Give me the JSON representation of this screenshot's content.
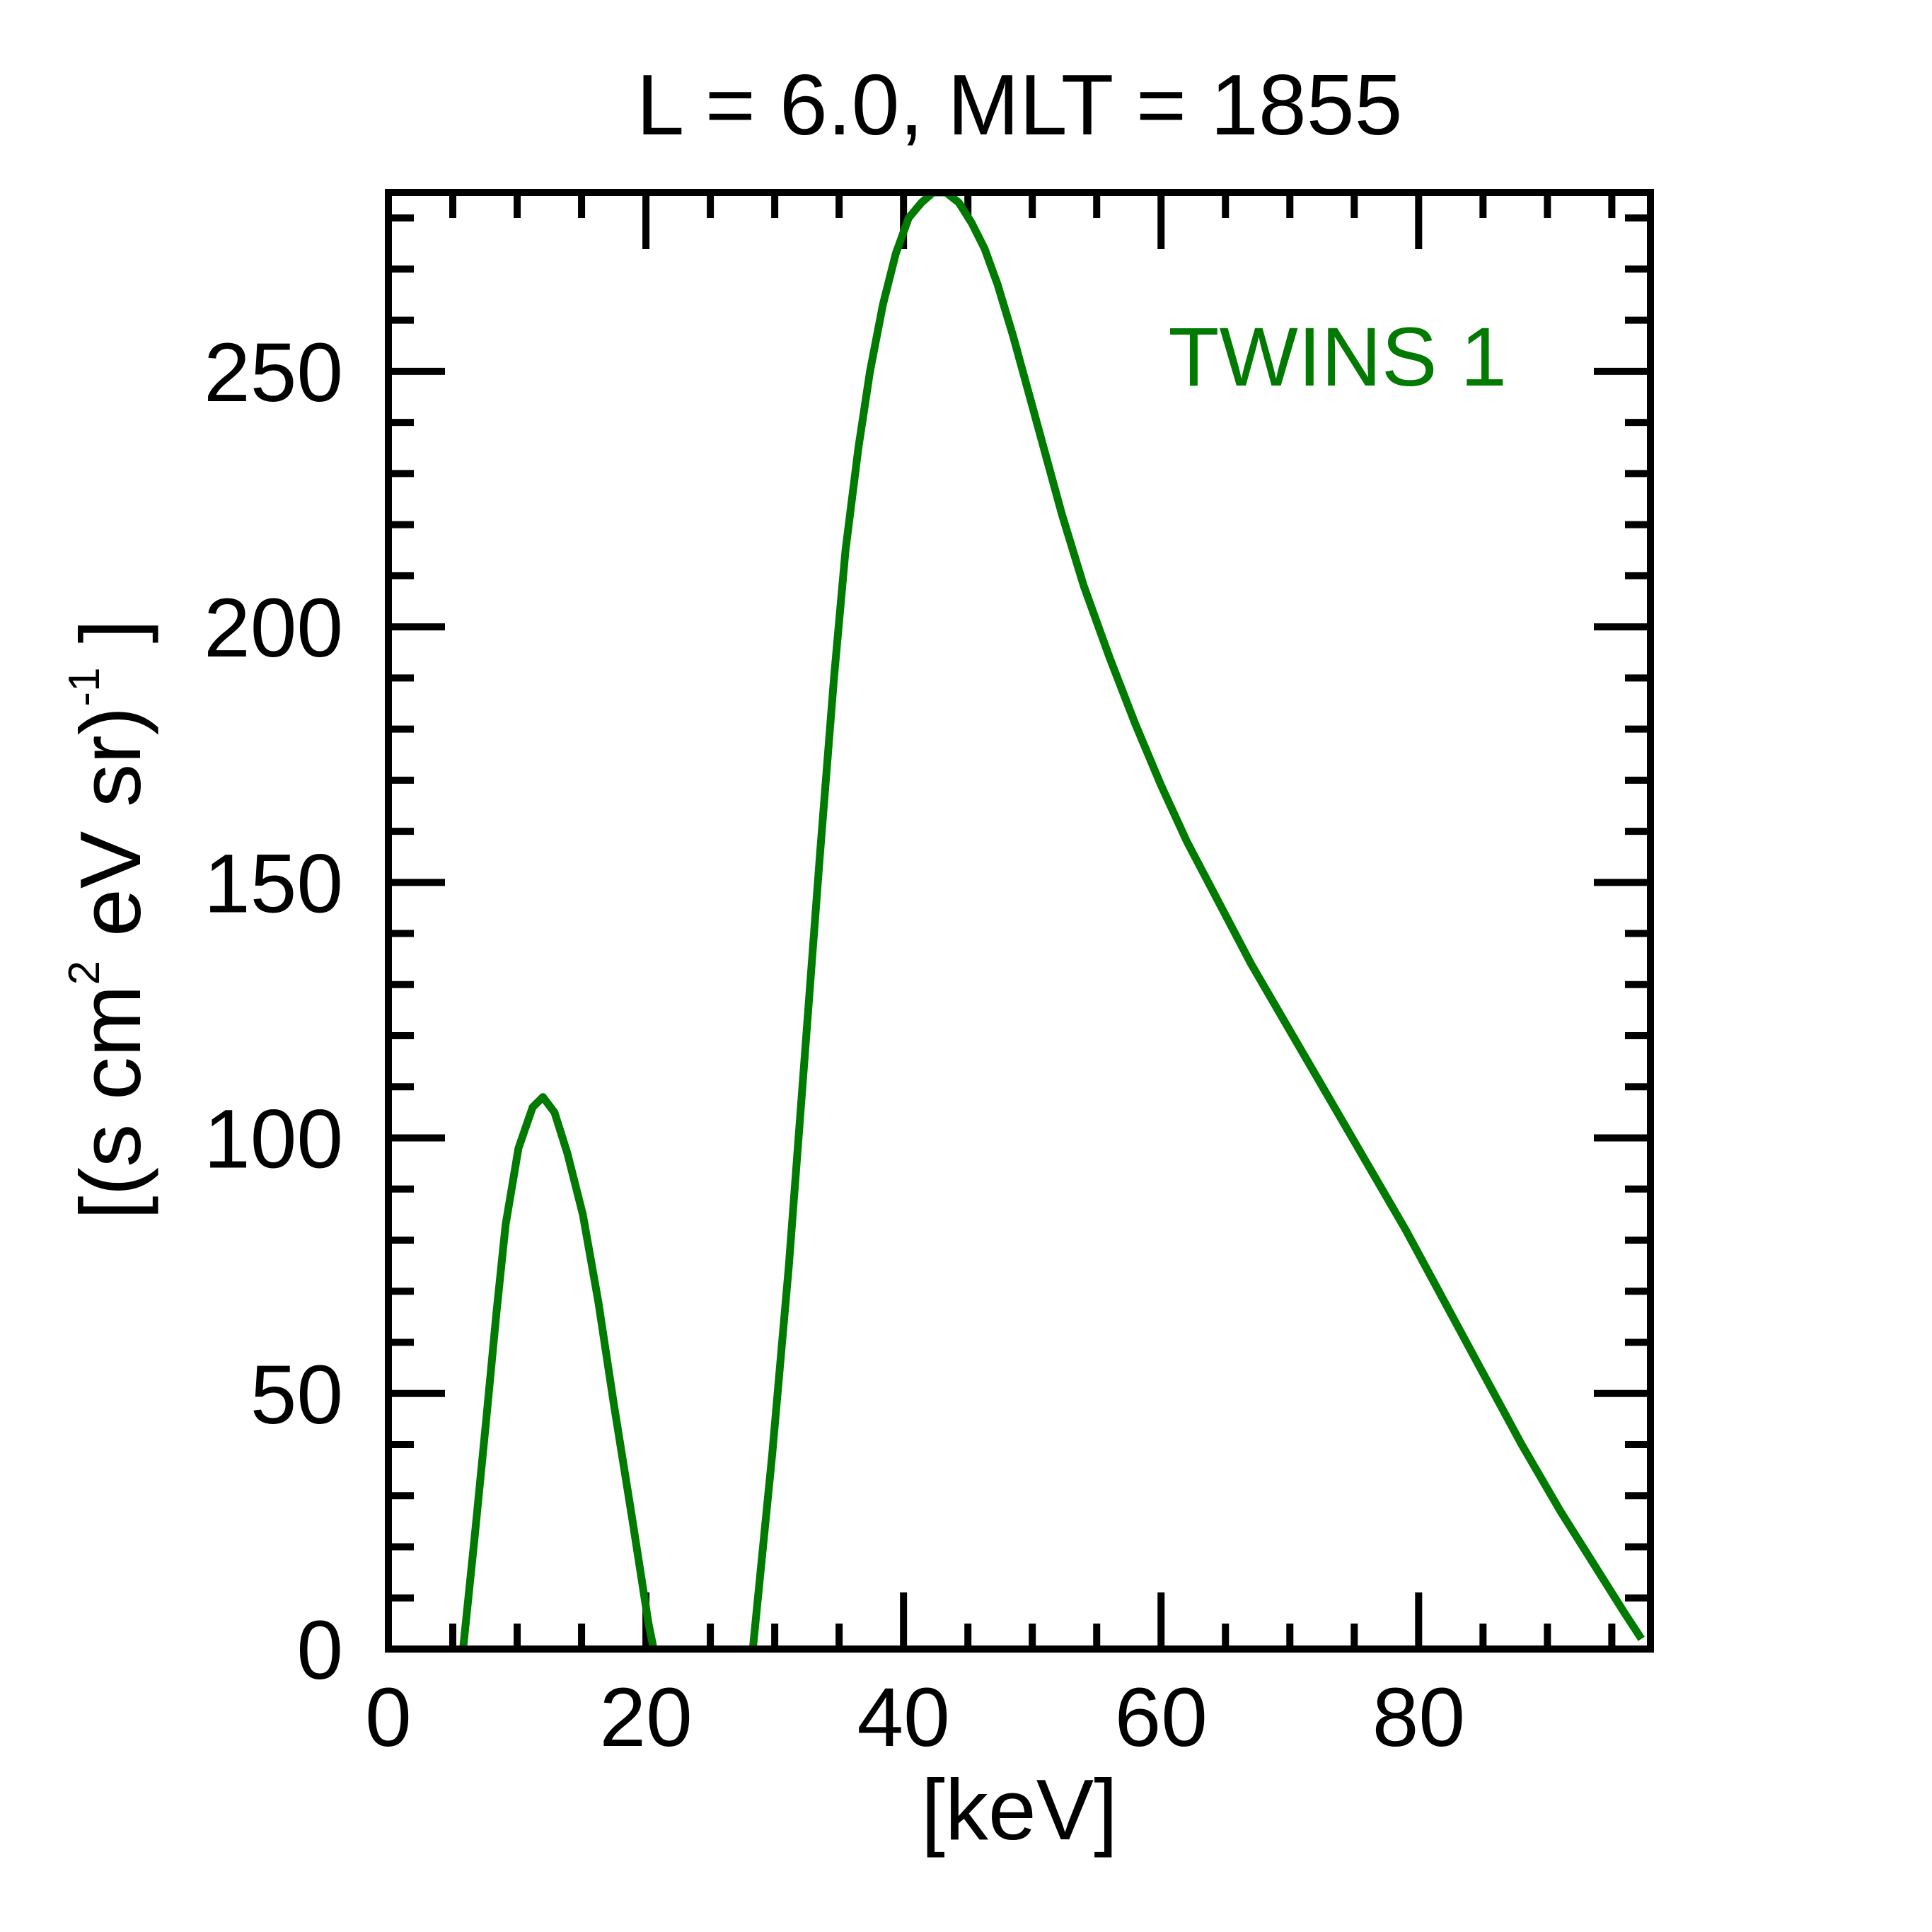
{
  "chart_data": {
    "type": "line",
    "title": "L =  6.0, MLT = 1855",
    "xlabel": "[keV]",
    "ylabel_parts": {
      "open": "[(s cm",
      "sup2": "2",
      "mid": " eV sr)",
      "supm1": "-1",
      "close": " ]"
    },
    "xlim": [
      0,
      98
    ],
    "ylim": [
      0,
      285
    ],
    "x_ticks": [
      0,
      20,
      40,
      60,
      80
    ],
    "x_tick_labels": [
      "0",
      "20",
      "40",
      "60",
      "80"
    ],
    "y_ticks": [
      0,
      50,
      100,
      150,
      200,
      250
    ],
    "y_tick_labels": [
      "0",
      "50",
      "100",
      "150",
      "200",
      "250"
    ],
    "x_minor_step": 5,
    "y_minor_step": 10,
    "grid": false,
    "legend_position": "top-right",
    "series": [
      {
        "name": "TWINS 1",
        "color": "#007a00",
        "segments": [
          [
            [
              5.8,
              0
            ],
            [
              6.7,
              22
            ],
            [
              7.6,
              45
            ],
            [
              8.4,
              66
            ],
            [
              9.1,
              83
            ],
            [
              10.1,
              98
            ],
            [
              11.2,
              106
            ],
            [
              12.0,
              108
            ],
            [
              12.9,
              105
            ],
            [
              13.9,
              97
            ],
            [
              15.1,
              85
            ],
            [
              16.3,
              68
            ],
            [
              17.5,
              48
            ],
            [
              18.9,
              26
            ],
            [
              20.2,
              5
            ],
            [
              20.6,
              0
            ]
          ],
          [
            [
              28.3,
              0
            ],
            [
              29.8,
              38
            ],
            [
              31.1,
              75
            ],
            [
              32.3,
              115
            ],
            [
              33.5,
              155
            ],
            [
              34.6,
              190
            ],
            [
              35.5,
              215
            ],
            [
              36.5,
              235
            ],
            [
              37.4,
              250
            ],
            [
              38.4,
              263
            ],
            [
              39.4,
              273
            ],
            [
              40.4,
              280
            ],
            [
              41.4,
              283
            ],
            [
              42.3,
              285
            ],
            [
              43.3,
              285
            ],
            [
              44.3,
              283
            ],
            [
              45.3,
              279
            ],
            [
              46.3,
              274
            ],
            [
              47.3,
              267
            ],
            [
              48.5,
              257
            ],
            [
              49.7,
              246
            ],
            [
              51.0,
              234
            ],
            [
              52.3,
              222
            ],
            [
              54.0,
              208
            ],
            [
              56.0,
              194
            ],
            [
              58.0,
              181
            ],
            [
              60.0,
              169
            ],
            [
              62.0,
              158
            ],
            [
              64.5,
              146
            ],
            [
              67.0,
              134
            ],
            [
              70.0,
              121
            ],
            [
              73.0,
              108
            ],
            [
              76.0,
              95
            ],
            [
              79.0,
              82
            ],
            [
              82.0,
              68
            ],
            [
              85.0,
              54
            ],
            [
              88.0,
              40
            ],
            [
              91.0,
              27
            ],
            [
              94.0,
              15
            ],
            [
              96.0,
              7
            ],
            [
              97.3,
              2
            ]
          ]
        ]
      }
    ]
  }
}
